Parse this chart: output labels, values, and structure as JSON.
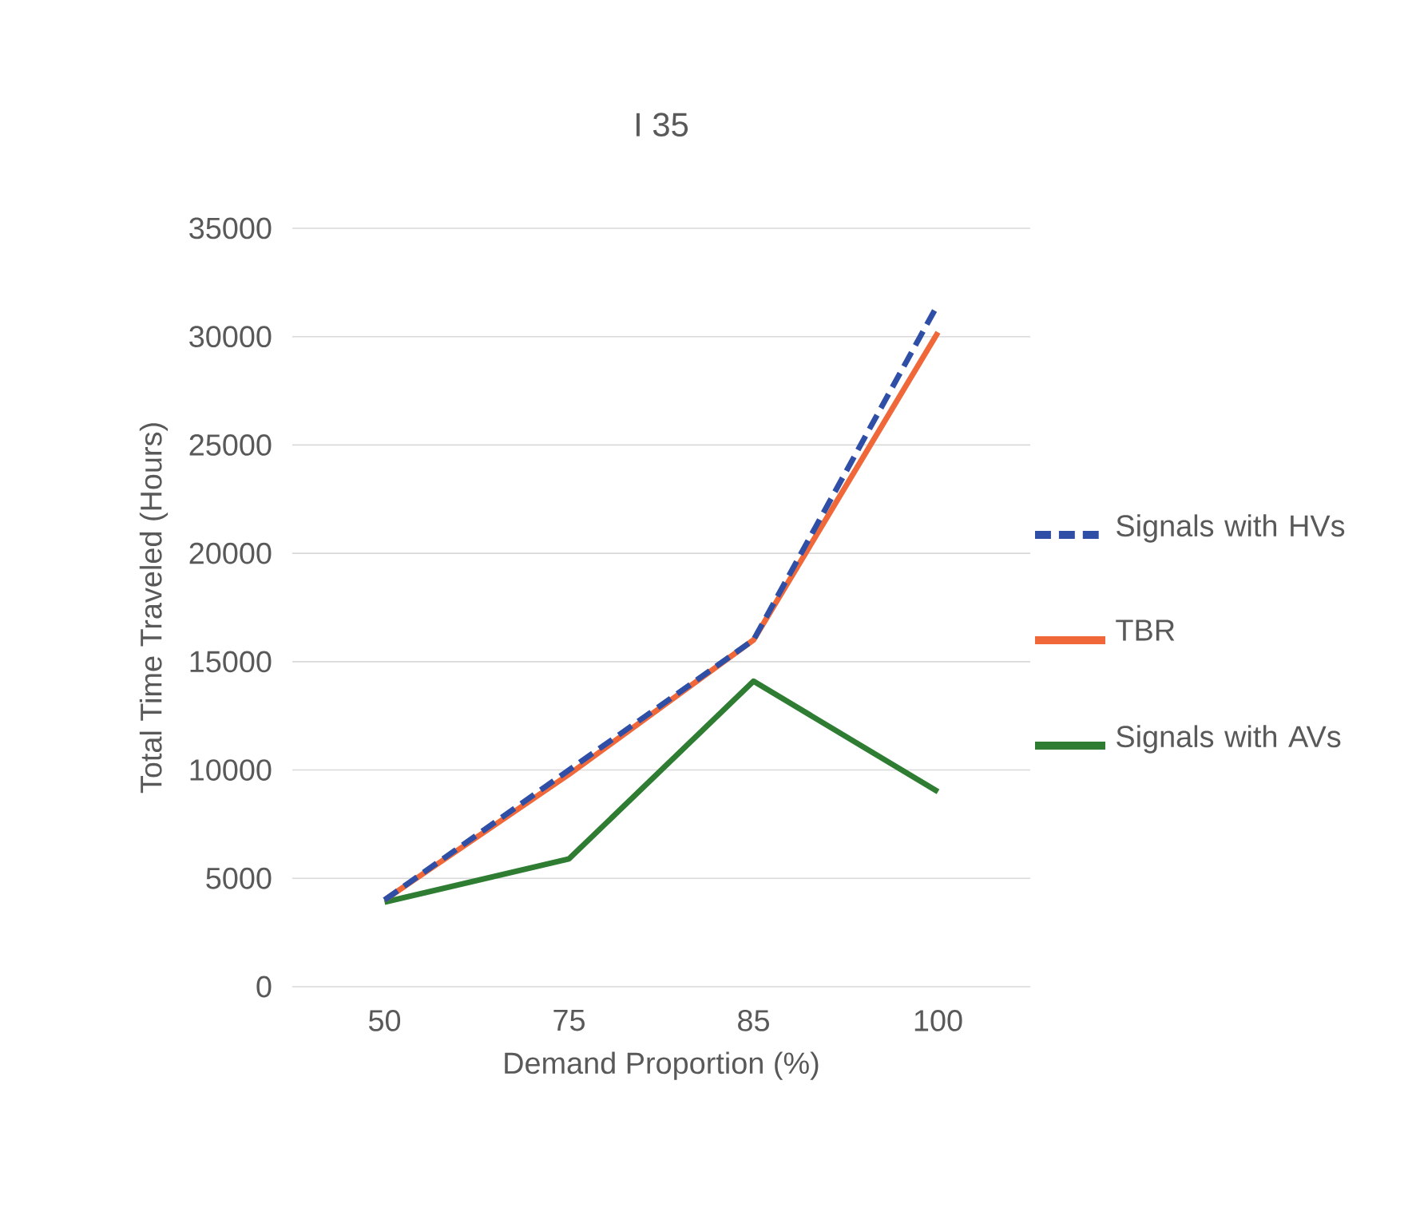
{
  "chart_data": {
    "type": "line",
    "title": "I 35",
    "xlabel": "Demand Proportion (%)",
    "ylabel": "Total Time Traveled (Hours)",
    "categories": [
      "50",
      "75",
      "85",
      "100"
    ],
    "series": [
      {
        "name": "Signals with HVs",
        "color": "#2f4fa6",
        "line_style": "dashed",
        "values": [
          4000,
          10000,
          16000,
          31500
        ]
      },
      {
        "name": "TBR",
        "color": "#f0683a",
        "line_style": "solid",
        "values": [
          4000,
          9800,
          16000,
          30200
        ]
      },
      {
        "name": "Signals with AVs",
        "color": "#2e7d32",
        "line_style": "solid",
        "values": [
          3900,
          5900,
          14100,
          9000
        ]
      }
    ],
    "ylim": [
      0,
      35000
    ],
    "yticks": [
      0,
      5000,
      10000,
      15000,
      20000,
      25000,
      30000,
      35000
    ],
    "grid": "y",
    "legend": "right"
  }
}
